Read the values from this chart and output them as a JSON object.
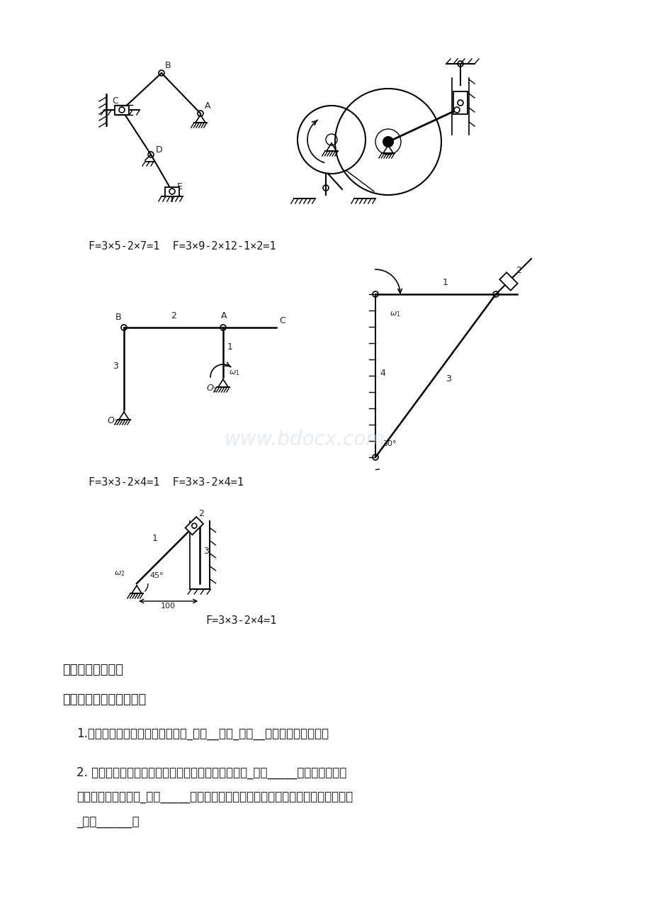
{
  "bg_color": "#ffffff",
  "watermark_text": "www.bdocx.com",
  "watermark_color": "#c8d4e8",
  "watermark_alpha": 0.45,
  "formula1": "F=3×5-2×7=1  F=3×9-2×12-1×2=1",
  "formula2": "F=3×3-2×4=1  F=3×3-2×4=1",
  "formula3": "F=3×3-2×4=1",
  "section_title": "三、平面连杆机构",
  "subsection_title": "一、填空：（每空一分）",
  "text1": "1.平面连杆机构由一些刚性构件用_转动__副和_移动__副相互联接而组成。",
  "text2_line1": "2. 在铰链四杆机构中，能作整周连续旋转的构件称为_曲柄_____，只能来回摇摆",
  "text2_line2": "某一角度的构件称为_摇杆_____，直接与连架杆相联接，借以传动和动力的构件称为",
  "text2_line3": "_连杆______。",
  "text_color": "#1a1a1a",
  "label_color": "#222222"
}
